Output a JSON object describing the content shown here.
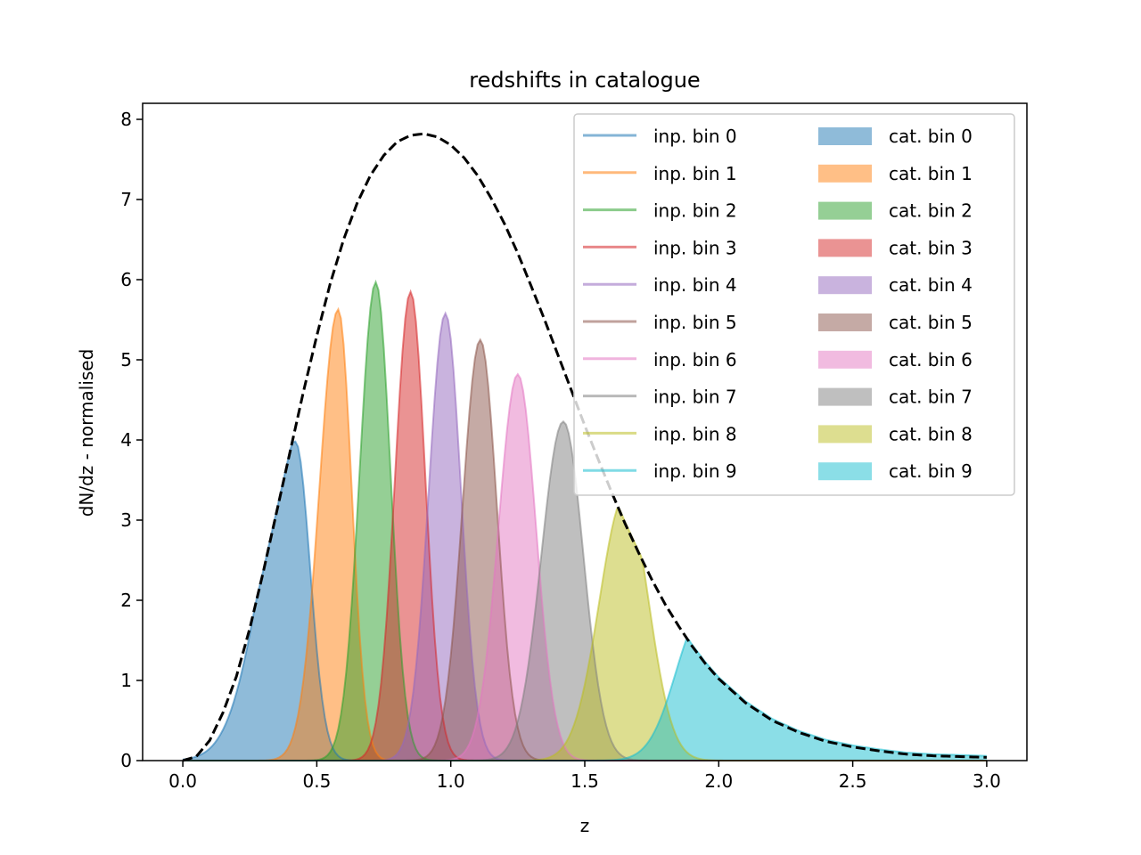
{
  "chart_data": {
    "type": "area",
    "title": "redshifts in catalogue",
    "xlabel": "z",
    "ylabel": "dN/dz - normalised",
    "xlim": [
      -0.15,
      3.15
    ],
    "ylim": [
      0,
      8.2
    ],
    "xticks": [
      0.0,
      0.5,
      1.0,
      1.5,
      2.0,
      2.5,
      3.0
    ],
    "xtick_labels": [
      "0.0",
      "0.5",
      "1.0",
      "1.5",
      "2.0",
      "2.5",
      "3.0"
    ],
    "yticks": [
      0,
      1,
      2,
      3,
      4,
      5,
      6,
      7,
      8
    ],
    "ytick_labels": [
      "0",
      "1",
      "2",
      "3",
      "4",
      "5",
      "6",
      "7",
      "8"
    ],
    "grid": false,
    "legend": {
      "placement": "top-right",
      "columns": 2
    },
    "total": {
      "style": "dashed",
      "color": "#000000",
      "x": [
        0.0,
        0.05,
        0.1,
        0.15,
        0.2,
        0.25,
        0.3,
        0.35,
        0.4,
        0.45,
        0.5,
        0.55,
        0.6,
        0.65,
        0.7,
        0.75,
        0.8,
        0.85,
        0.9,
        0.95,
        1.0,
        1.05,
        1.1,
        1.15,
        1.2,
        1.25,
        1.3,
        1.35,
        1.4,
        1.45,
        1.5,
        1.55,
        1.6,
        1.65,
        1.7,
        1.75,
        1.8,
        1.85,
        1.9,
        1.95,
        2.0,
        2.1,
        2.2,
        2.3,
        2.4,
        2.5,
        2.6,
        2.7,
        2.8,
        2.9,
        3.0
      ],
      "y": [
        0.0,
        0.05,
        0.25,
        0.6,
        1.05,
        1.65,
        2.35,
        3.1,
        3.85,
        4.6,
        5.3,
        5.95,
        6.5,
        6.95,
        7.3,
        7.55,
        7.72,
        7.8,
        7.82,
        7.78,
        7.68,
        7.52,
        7.3,
        7.02,
        6.7,
        6.33,
        5.92,
        5.5,
        5.06,
        4.62,
        4.18,
        3.76,
        3.35,
        2.96,
        2.6,
        2.26,
        1.95,
        1.68,
        1.43,
        1.21,
        1.02,
        0.72,
        0.5,
        0.35,
        0.24,
        0.17,
        0.12,
        0.08,
        0.06,
        0.05,
        0.04
      ]
    },
    "series": [
      {
        "name": "inp. bin 0",
        "hist_name": "cat. bin 0",
        "color": "#1f77b4",
        "peak_z": 0.42,
        "peak_y": 3.98,
        "sigma_left": 0.125,
        "sigma_right": 0.055,
        "z_min": 0.0
      },
      {
        "name": "inp. bin 1",
        "hist_name": "cat. bin 1",
        "color": "#ff7f0e",
        "peak_z": 0.58,
        "peak_y": 5.63,
        "sigma_left": 0.07,
        "sigma_right": 0.05
      },
      {
        "name": "inp. bin 2",
        "hist_name": "cat. bin 2",
        "color": "#2ca02c",
        "peak_z": 0.72,
        "peak_y": 5.97,
        "sigma_left": 0.06,
        "sigma_right": 0.055
      },
      {
        "name": "inp. bin 3",
        "hist_name": "cat. bin 3",
        "color": "#d62728",
        "peak_z": 0.85,
        "peak_y": 5.85,
        "sigma_left": 0.058,
        "sigma_right": 0.055
      },
      {
        "name": "inp. bin 4",
        "hist_name": "cat. bin 4",
        "color": "#9467bd",
        "peak_z": 0.98,
        "peak_y": 5.58,
        "sigma_left": 0.062,
        "sigma_right": 0.058
      },
      {
        "name": "inp. bin 5",
        "hist_name": "cat. bin 5",
        "color": "#8c564b",
        "peak_z": 1.11,
        "peak_y": 5.25,
        "sigma_left": 0.066,
        "sigma_right": 0.062
      },
      {
        "name": "inp. bin 6",
        "hist_name": "cat. bin 6",
        "color": "#e377c2",
        "peak_z": 1.25,
        "peak_y": 4.82,
        "sigma_left": 0.072,
        "sigma_right": 0.068
      },
      {
        "name": "inp. bin 7",
        "hist_name": "cat. bin 7",
        "color": "#7f7f7f",
        "peak_z": 1.42,
        "peak_y": 4.23,
        "sigma_left": 0.082,
        "sigma_right": 0.075
      },
      {
        "name": "inp. bin 8",
        "hist_name": "cat. bin 8",
        "color": "#bcbd22",
        "peak_z": 1.65,
        "peak_y": 3.3,
        "sigma_left": 0.095,
        "sigma_right": 0.088
      },
      {
        "name": "inp. bin 9",
        "hist_name": "cat. bin 9",
        "color": "#17becf",
        "peak_z": 1.94,
        "peak_y": 1.82,
        "sigma_left": 0.1,
        "sigma_right": 0,
        "follow_total_right": true,
        "z_max": 3.0
      }
    ]
  }
}
